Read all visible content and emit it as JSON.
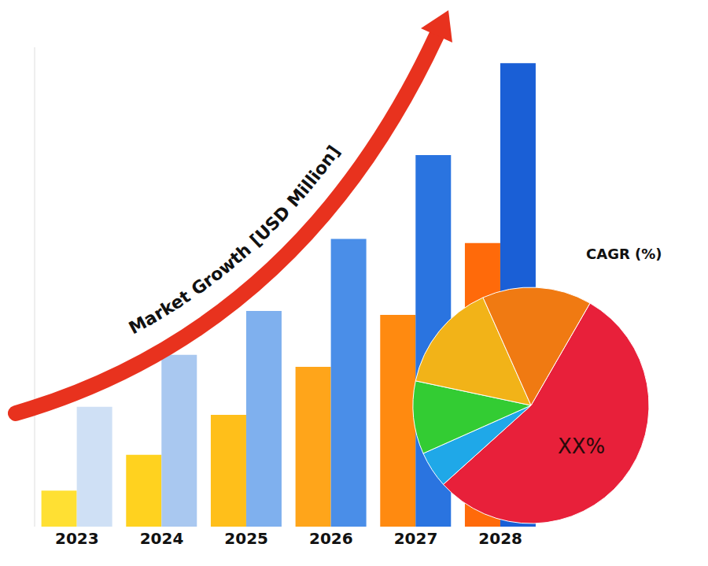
{
  "chart_data": [
    {
      "type": "bar",
      "ylabel": "Market Growth [USD Million]",
      "categories": [
        "2023",
        "2024",
        "2025",
        "2026",
        "2027",
        "2028"
      ],
      "series": [
        {
          "colors": [
            "#ffe033",
            "#ffd21f",
            "#ffbf1a",
            "#ffa51a",
            "#ff8a10",
            "#ff6a0a"
          ],
          "values": [
            45,
            90,
            140,
            200,
            265,
            355
          ]
        },
        {
          "colors": [
            "#cfe0f5",
            "#a9c8f0",
            "#7fb0ee",
            "#4a8ee8",
            "#2a74e0",
            "#1a5fd6"
          ],
          "values": [
            150,
            215,
            270,
            360,
            465,
            580
          ]
        }
      ],
      "ylim": [
        0,
        600
      ],
      "yticks": [],
      "tick_labels": "x",
      "grid": false
    },
    {
      "type": "pie",
      "title": "CAGR (%)",
      "annotation": "XX%",
      "values": [
        55,
        5,
        10,
        15,
        15
      ],
      "colors": [
        "#e8203a",
        "#1fa8e8",
        "#33cc33",
        "#f2b318",
        "#f07a12"
      ]
    }
  ]
}
